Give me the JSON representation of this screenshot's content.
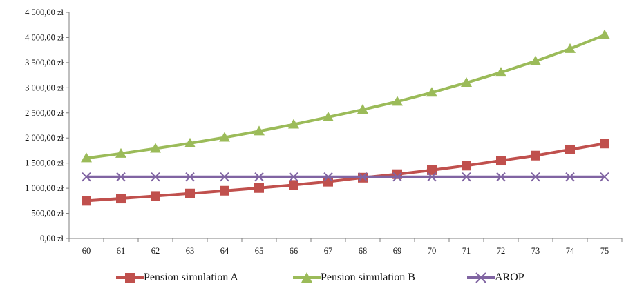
{
  "chart_data": {
    "type": "line",
    "title": "",
    "xlabel": "",
    "ylabel": "",
    "categories": [
      "60",
      "61",
      "62",
      "63",
      "64",
      "65",
      "66",
      "67",
      "68",
      "69",
      "70",
      "71",
      "72",
      "73",
      "74",
      "75"
    ],
    "ylim": [
      0,
      4500
    ],
    "y_ticks": [
      "0,00 zł",
      "500,00 zł",
      "1 000,00 zł",
      "1 500,00 zł",
      "2 000,00 zł",
      "2 500,00 zł",
      "3 000,00 zł",
      "3 500,00 zł",
      "4 000,00 zł",
      "4 500,00 zł"
    ],
    "grid": false,
    "legend_position": "bottom",
    "series": [
      {
        "name": "Pension simulation A",
        "marker": "square",
        "color": "#c0504d",
        "marker_color": "#c0504d",
        "values": [
          750,
          795,
          845,
          895,
          950,
          1005,
          1065,
          1130,
          1210,
          1280,
          1360,
          1450,
          1550,
          1650,
          1770,
          1890
        ]
      },
      {
        "name": "Pension simulation B",
        "marker": "triangle",
        "color": "#9bbb59",
        "marker_color": "#9bbb59",
        "values": [
          1600,
          1690,
          1790,
          1895,
          2010,
          2135,
          2270,
          2415,
          2565,
          2725,
          2905,
          3100,
          3305,
          3530,
          3775,
          4050
        ]
      },
      {
        "name": "AROP",
        "marker": "x",
        "color": "#8064a2",
        "marker_color": "#8064a2",
        "values": [
          1225,
          1225,
          1225,
          1225,
          1225,
          1225,
          1225,
          1225,
          1225,
          1225,
          1225,
          1225,
          1225,
          1225,
          1225,
          1225
        ]
      }
    ]
  }
}
